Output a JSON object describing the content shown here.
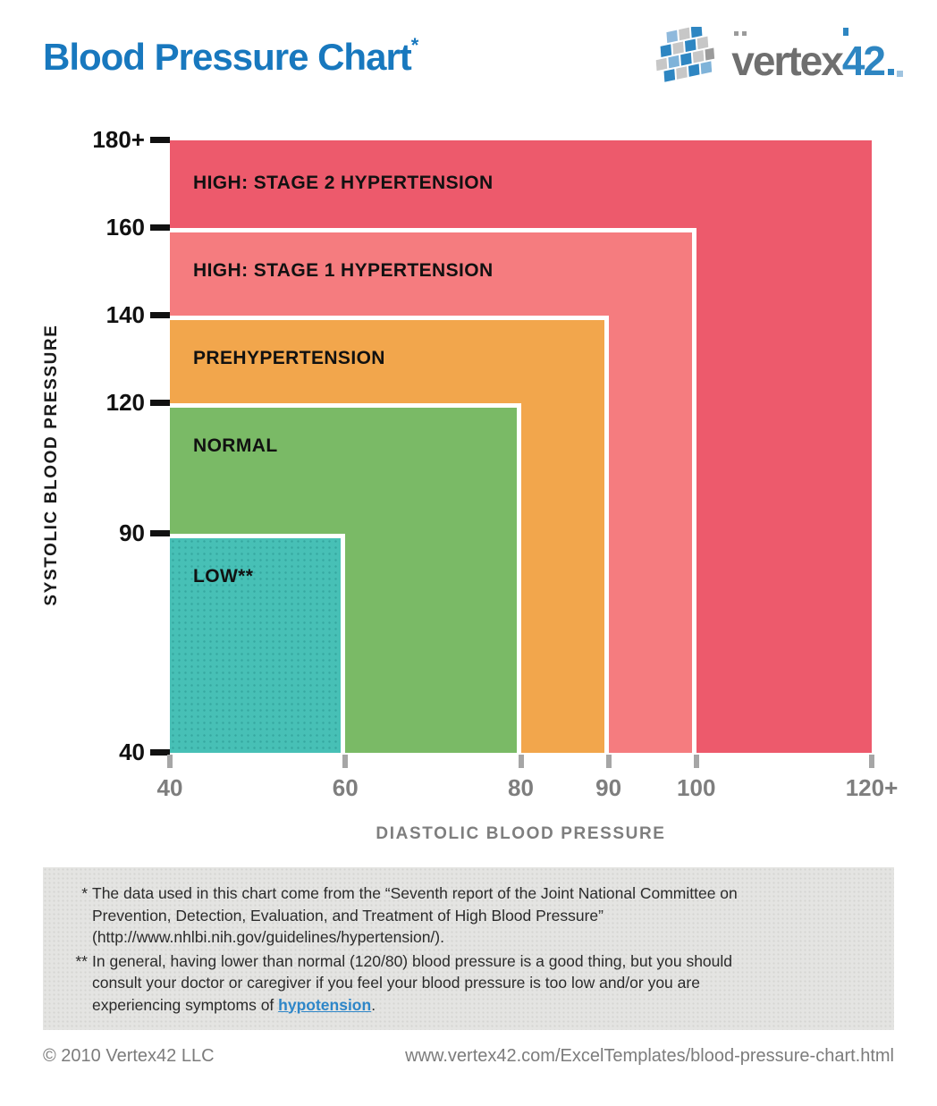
{
  "title": {
    "text": "Blood Pressure Chart",
    "footnote_marker": "*"
  },
  "logo": {
    "word": "vertex",
    "number": "42"
  },
  "chart_data": {
    "type": "area",
    "subtype": "nested-ranges",
    "title": "Blood Pressure Chart",
    "xlabel": "DIASTOLIC BLOOD PRESSURE",
    "ylabel": "SYSTOLIC BLOOD PRESSURE",
    "grid": false,
    "x_axis": {
      "min": 40,
      "max": 120,
      "ticks": [
        {
          "v": 40,
          "label": "40"
        },
        {
          "v": 60,
          "label": "60"
        },
        {
          "v": 80,
          "label": "80"
        },
        {
          "v": 90,
          "label": "90"
        },
        {
          "v": 100,
          "label": "100"
        },
        {
          "v": 120,
          "label": "120+"
        }
      ]
    },
    "y_axis": {
      "min": 40,
      "max": 180,
      "ticks": [
        {
          "v": 40,
          "label": "40"
        },
        {
          "v": 90,
          "label": "90"
        },
        {
          "v": 120,
          "label": "120"
        },
        {
          "v": 140,
          "label": "140"
        },
        {
          "v": 160,
          "label": "160"
        },
        {
          "v": 180,
          "label": "180+"
        }
      ]
    },
    "regions": [
      {
        "name": "high-stage-2-hypertension",
        "label": "HIGH: STAGE 2 HYPERTENSION",
        "diastolic_range": [
          40,
          120
        ],
        "systolic_range": [
          40,
          180
        ],
        "open_ended": true,
        "color": "#ED5A6C"
      },
      {
        "name": "high-stage-1-hypertension",
        "label": "HIGH: STAGE 1 HYPERTENSION",
        "diastolic_range": [
          40,
          100
        ],
        "systolic_range": [
          40,
          160
        ],
        "color": "#F57C7F"
      },
      {
        "name": "prehypertension",
        "label": "PREHYPERTENSION",
        "diastolic_range": [
          40,
          90
        ],
        "systolic_range": [
          40,
          140
        ],
        "color": "#F2A64C"
      },
      {
        "name": "normal",
        "label": "NORMAL",
        "diastolic_range": [
          40,
          80
        ],
        "systolic_range": [
          40,
          120
        ],
        "color": "#7ABA66"
      },
      {
        "name": "low",
        "label": "LOW**",
        "diastolic_range": [
          40,
          60
        ],
        "systolic_range": [
          40,
          90
        ],
        "color": "#47C0B6",
        "textured": true
      }
    ]
  },
  "footnotes": {
    "items": [
      {
        "marker": "*",
        "lines": [
          "The data used in this chart come from the “Seventh report of the Joint National Committee on",
          "Prevention, Detection, Evaluation, and Treatment of High Blood Pressure”",
          "(http://www.nhlbi.nih.gov/guidelines/hypertension/)."
        ]
      },
      {
        "marker": "**",
        "lines": [
          "In general, having lower than normal (120/80) blood pressure is a good thing, but you should",
          "consult your doctor or caregiver if you feel your blood pressure is too low and/or you are"
        ],
        "last_line": {
          "before": "experiencing symptoms of ",
          "link": "hypotension",
          "after": "."
        }
      }
    ]
  },
  "footer": {
    "copyright": "© 2010 Vertex42 LLC",
    "url": "www.vertex42.com/ExcelTemplates/blood-pressure-chart.html"
  }
}
